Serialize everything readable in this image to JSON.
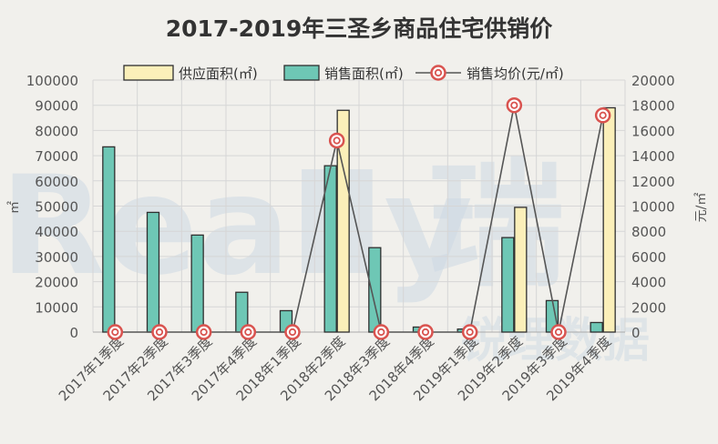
{
  "chart_data": {
    "type": "bar",
    "title": "2017-2019年三圣乡商品住宅供销价",
    "categories": [
      "2017年1季度",
      "2017年2季度",
      "2017年3季度",
      "2017年4季度",
      "2018年1季度",
      "2018年2季度",
      "2018年3季度",
      "2018年4季度",
      "2019年1季度",
      "2019年2季度",
      "2019年3季度",
      "2019年4季度"
    ],
    "ylabel": "㎡",
    "y2label": "元/㎡",
    "ylim": [
      0,
      100000
    ],
    "y2lim": [
      0,
      20000
    ],
    "yticks": [
      0,
      10000,
      20000,
      30000,
      40000,
      50000,
      60000,
      70000,
      80000,
      90000,
      100000
    ],
    "y2ticks": [
      0,
      2000,
      4000,
      6000,
      8000,
      10000,
      12000,
      14000,
      16000,
      18000,
      20000
    ],
    "grid": true,
    "legend_position": "top",
    "series": [
      {
        "name": "供应面积(㎡)",
        "type": "bar",
        "axis": "left",
        "color": "#fbefb9",
        "values": [
          0,
          0,
          0,
          0,
          0,
          88000,
          0,
          0,
          0,
          49500,
          0,
          89000
        ]
      },
      {
        "name": "销售面积(㎡)",
        "type": "bar",
        "axis": "left",
        "color": "#6ec7b5",
        "values": [
          73500,
          47500,
          38500,
          15800,
          8500,
          66000,
          33500,
          2000,
          1200,
          37500,
          12500,
          3800
        ]
      },
      {
        "name": "销售均价(元/㎡)",
        "type": "line",
        "axis": "right",
        "color": "#d9534f",
        "values": [
          0,
          0,
          0,
          0,
          0,
          15200,
          0,
          0,
          0,
          18000,
          0,
          17200
        ]
      }
    ]
  },
  "watermark": {
    "text": "Really",
    "text2": "瑞",
    "text3": "锐理数据"
  }
}
